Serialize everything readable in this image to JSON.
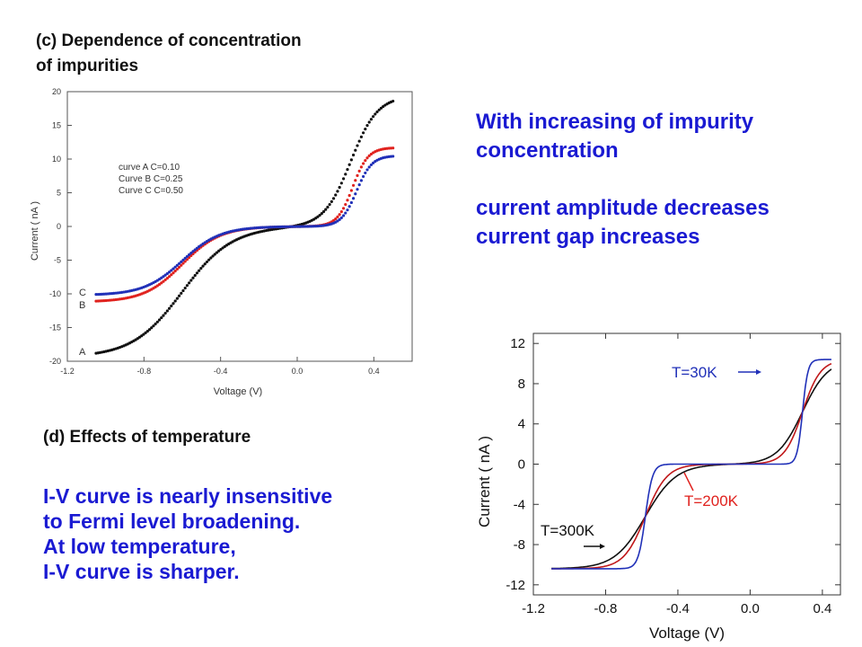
{
  "heading_c": [
    "(c) Dependence of concentration",
    "of impurities"
  ],
  "heading_d": "(d) Effects of temperature",
  "right_text": [
    "With increasing of impurity",
    "concentration",
    "",
    "current amplitude decreases",
    "current gap increases"
  ],
  "bottom_text": [
    "I-V curve is nearly insensitive",
    "to Fermi level broadening.",
    "At low temperature,",
    "I-V curve is sharper."
  ],
  "colors": {
    "text_blue": "#1a1ad2",
    "black": "#111111",
    "red": "#e0221e",
    "blue": "#2030b8",
    "dark_red": "#c0181a"
  },
  "chart_data": [
    {
      "type": "scatter",
      "xlabel": "Voltage (V)",
      "ylabel": "Current ( nA )",
      "xlim": [
        -1.2,
        0.6
      ],
      "ylim": [
        -20,
        20
      ],
      "xticks": [
        -1.2,
        -0.8,
        -0.4,
        0.0,
        0.4
      ],
      "xtick_labels": [
        "-1.2",
        "-0.8",
        "-0.4",
        "0.0",
        "0.4"
      ],
      "yticks": [
        -20,
        -15,
        -10,
        -5,
        0,
        5,
        10,
        15,
        20
      ],
      "ytick_labels": [
        "-20",
        "-15",
        "-10",
        "-5",
        "0",
        "5",
        "10",
        "15",
        "20"
      ],
      "legend": [
        "curve A C=0.10",
        "Curve B C=0.25",
        "Curve C C=0.50"
      ],
      "curve_letters": [
        "C",
        "B",
        "A"
      ],
      "x_range": [
        -1.05,
        0.5
      ],
      "series": [
        {
          "name": "curve A C=0.10",
          "color": "black",
          "A": 20.3,
          "g1": 1.05,
          "g2": 1.2,
          "vn": 0.0,
          "vp": 0.0,
          "cn": -0.6,
          "cp": 0.28,
          "wn": 0.13,
          "wp": 0.07,
          "ymin": -19.4,
          "ymax": 19.4
        },
        {
          "name": "Curve B C=0.25",
          "color": "red",
          "A": 11.7,
          "g1": 1.0,
          "g2": 1.0,
          "vn": 0.0,
          "vp": 0.0,
          "cn": -0.6,
          "cp": 0.29,
          "wn": 0.1,
          "wp": 0.04,
          "ymin": -11.2,
          "ymax": 11.7
        },
        {
          "name": "Curve C C=0.50",
          "color": "blue",
          "A": 10.5,
          "g1": 1.0,
          "g2": 1.0,
          "vn": 0.0,
          "vp": 0.0,
          "cn": -0.6,
          "cp": 0.31,
          "wn": 0.1,
          "wp": 0.04,
          "ymin": -10.2,
          "ymax": 10.5
        }
      ]
    },
    {
      "type": "line",
      "xlabel": "Voltage (V)",
      "ylabel": "Current ( nA )",
      "xlim": [
        -1.2,
        0.5
      ],
      "ylim": [
        -13,
        13
      ],
      "xticks": [
        -1.2,
        -0.8,
        -0.4,
        0.0,
        0.4
      ],
      "xtick_labels": [
        "-1.2",
        "-0.8",
        "-0.4",
        "0.0",
        "0.4"
      ],
      "yticks": [
        -12,
        -8,
        -4,
        0,
        4,
        8,
        12
      ],
      "ytick_labels": [
        "-12",
        "-8",
        "-4",
        "0",
        "4",
        "8",
        "12"
      ],
      "annotations": [
        "T=30K",
        "T=200K",
        "T=300K"
      ],
      "x_range": [
        -1.1,
        0.45
      ],
      "series": [
        {
          "name": "T=300K",
          "color": "black",
          "A": 10.4,
          "cn": -0.58,
          "cp": 0.29,
          "wn": 0.085,
          "wp": 0.07
        },
        {
          "name": "T=200K",
          "color": "dark_red",
          "A": 10.4,
          "cn": -0.58,
          "cp": 0.29,
          "wn": 0.06,
          "wp": 0.05
        },
        {
          "name": "T=30K",
          "color": "blue",
          "A": 10.4,
          "cn": -0.58,
          "cp": 0.29,
          "wn": 0.02,
          "wp": 0.015
        }
      ]
    }
  ]
}
